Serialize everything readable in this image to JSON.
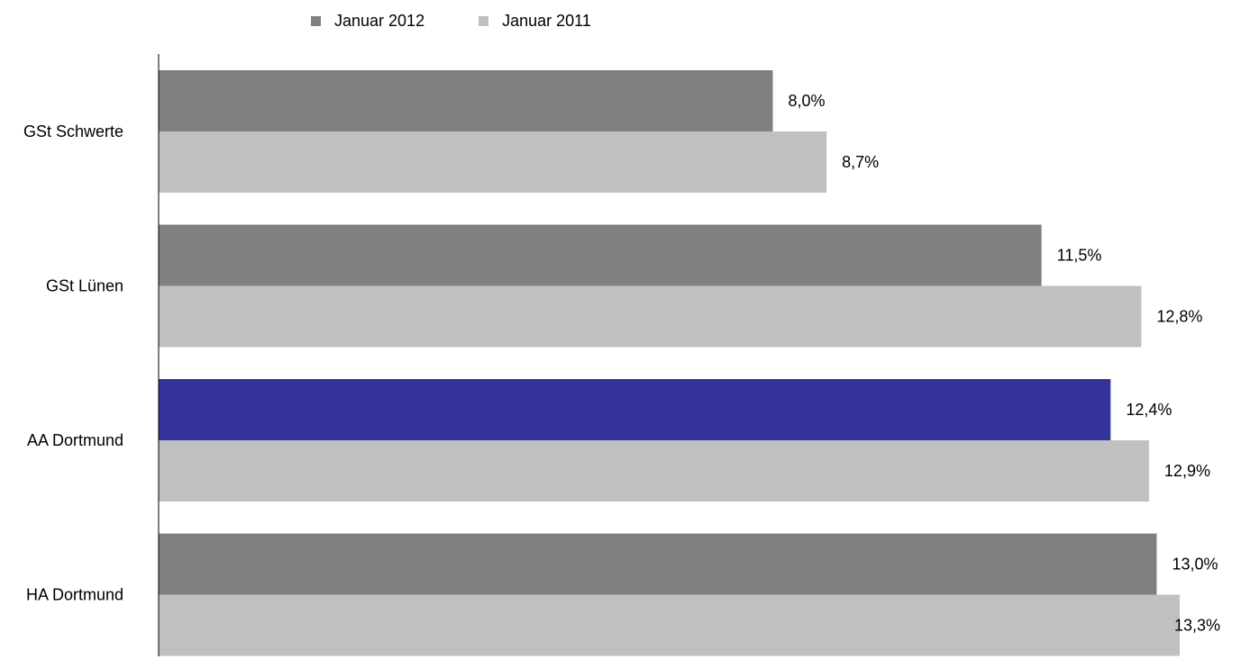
{
  "chart_data": {
    "type": "bar",
    "orientation": "horizontal",
    "title": "",
    "xlabel": "",
    "ylabel": "",
    "categories": [
      "GSt Schwerte",
      "GSt Lünen",
      "AA Dortmund",
      "HA Dortmund"
    ],
    "series": [
      {
        "name": "Januar 2012",
        "color": "#808080",
        "values": [
          8.0,
          11.5,
          12.4,
          13.0
        ],
        "labels": [
          "8,0%",
          "11,5%",
          "12,4%",
          "13,0%"
        ],
        "point_colors": [
          "#808080",
          "#808080",
          "#333399",
          "#808080"
        ]
      },
      {
        "name": "Januar 2011",
        "color": "#c0c0c0",
        "values": [
          8.7,
          12.8,
          12.9,
          13.3
        ],
        "labels": [
          "8,7%",
          "12,8%",
          "12,9%",
          "13,3%"
        ],
        "point_colors": [
          "#c0c0c0",
          "#c0c0c0",
          "#c0c0c0",
          "#c0c0c0"
        ]
      }
    ],
    "xlim": [
      0,
      13.3
    ],
    "grid": false,
    "legend_position": "top-left"
  }
}
